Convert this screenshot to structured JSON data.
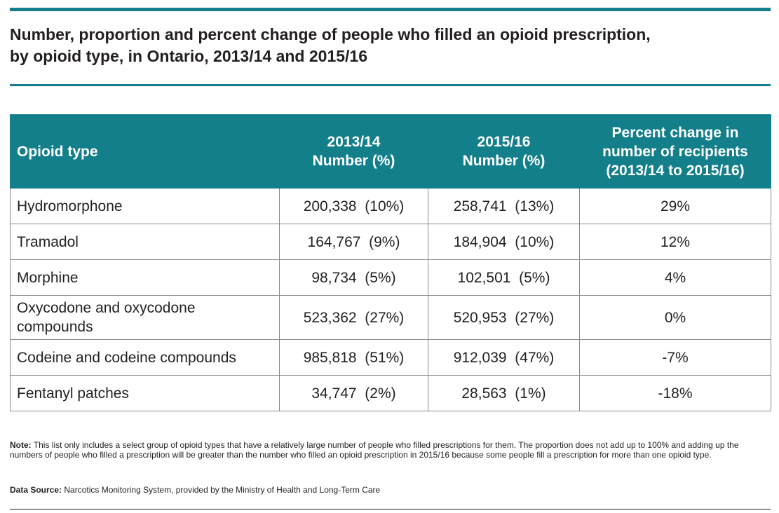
{
  "title": {
    "line1": "Number, proportion and percent change of people who filled an opioid prescription,",
    "line2": "by opioid type, in Ontario, 2013/14 and 2015/16"
  },
  "table": {
    "headers": {
      "col1": "Opioid type",
      "col2_line1": "2013/14",
      "col2_line2": "Number (%)",
      "col3_line1": "2015/16",
      "col3_line2": "Number (%)",
      "col4_line1": "Percent change in",
      "col4_line2": "number of recipients",
      "col4_line3": "(2013/14 to 2015/16)"
    },
    "rows": [
      {
        "type": "Hydromorphone",
        "y2013": "200,338  (10%)",
        "y2015": "258,741  (13%)",
        "change": "29%"
      },
      {
        "type": "Tramadol",
        "y2013": "164,767  (9%)",
        "y2015": "184,904  (10%)",
        "change": "12%"
      },
      {
        "type": "Morphine",
        "y2013": "98,734  (5%)",
        "y2015": "102,501  (5%)",
        "change": "4%"
      },
      {
        "type_line1": "Oxycodone and oxycodone",
        "type_line2": "compounds",
        "y2013": "523,362  (27%)",
        "y2015": "520,953  (27%)",
        "change": "0%"
      },
      {
        "type": "Codeine and codeine compounds",
        "y2013": "985,818  (51%)",
        "y2015": "912,039  (47%)",
        "change": "-7%"
      },
      {
        "type": "Fentanyl patches",
        "y2013": "34,747  (2%)",
        "y2015": "28,563  (1%)",
        "change": "-18%"
      }
    ]
  },
  "note": {
    "label": "Note:",
    "text": " This list only includes a select group of opioid types that have a relatively large number of people who filled prescriptions for them. The proportion does not add up to 100% and adding up the numbers of people who filled a prescription will be greater than the number who filled an opioid prescription in 2015/16 because some people fill a prescription for more than one opioid type."
  },
  "source": {
    "label": "Data Source:",
    "text": " Narcotics Monitoring System, provided by the Ministry of Health and Long-Term Care"
  },
  "colors": {
    "accent": "#137f8a",
    "text": "#231f20",
    "border": "#8a8a8a"
  }
}
